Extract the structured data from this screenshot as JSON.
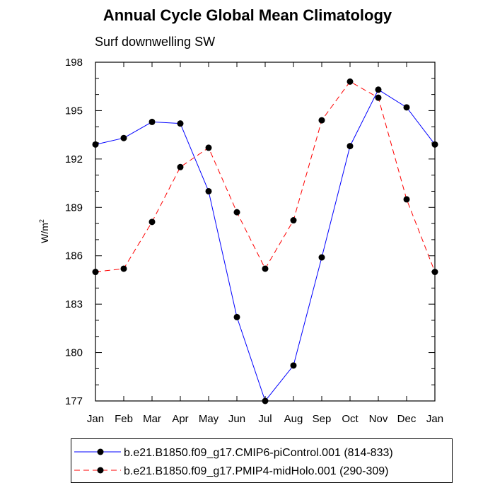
{
  "chart_data": {
    "type": "line",
    "title": "Annual Cycle Global Mean Climatology",
    "subtitle": "Surf downwelling SW",
    "ylabel": "W/m",
    "ylabel_superscript": "2",
    "xlabel": "",
    "categories": [
      "Jan",
      "Feb",
      "Mar",
      "Apr",
      "May",
      "Jun",
      "Jul",
      "Aug",
      "Sep",
      "Oct",
      "Nov",
      "Dec",
      "Jan"
    ],
    "ylim": [
      177,
      198
    ],
    "yticks": [
      177,
      180,
      183,
      186,
      189,
      192,
      195,
      198
    ],
    "ytick_labels": [
      "177",
      "180",
      "183",
      "186",
      "189",
      "192",
      "195",
      "198"
    ],
    "grid": false,
    "legend_position": "bottom",
    "series": [
      {
        "name": "b.e21.B1850.f09_g17.CMIP6-piControl.001 (814-833)",
        "color": "#0000ff",
        "dash": "solid",
        "marker": "circle",
        "values": [
          192.9,
          193.3,
          194.3,
          194.2,
          190.0,
          182.2,
          177.0,
          179.2,
          185.9,
          192.8,
          196.3,
          195.2,
          192.9
        ]
      },
      {
        "name": "b.e21.B1850.f09_g17.PMIP4-midHolo.001 (290-309)",
        "color": "#ff0000",
        "dash": "dashed",
        "marker": "circle",
        "values": [
          185.0,
          185.2,
          188.1,
          191.5,
          192.7,
          188.7,
          185.2,
          188.2,
          194.4,
          196.8,
          195.8,
          189.5,
          185.0
        ]
      }
    ]
  }
}
